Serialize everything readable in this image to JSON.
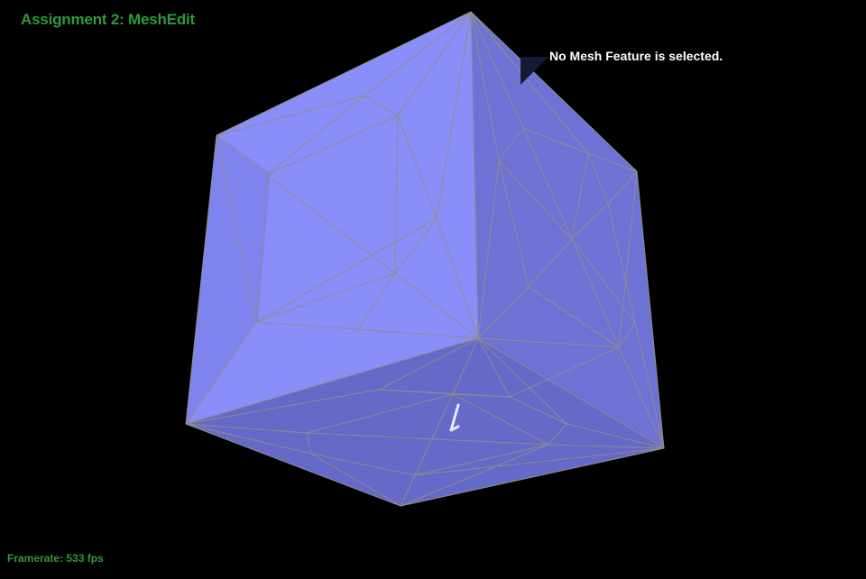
{
  "app": {
    "title": "Assignment 2: MeshEdit"
  },
  "info_panel": {
    "text": "No Mesh Feature is selected."
  },
  "status": {
    "framerate": "Framerate: 533 fps"
  },
  "mesh": {
    "face_colors": {
      "front": "#8a8ef8",
      "front_left": "#7e83ee",
      "right": "#6e72d4",
      "bottom": "#6569c8"
    },
    "edge_color": "#8d8d8d"
  },
  "colors": {
    "background": "#000000",
    "hud_text": "#2f9a3b",
    "info_text": "#ffffff"
  }
}
